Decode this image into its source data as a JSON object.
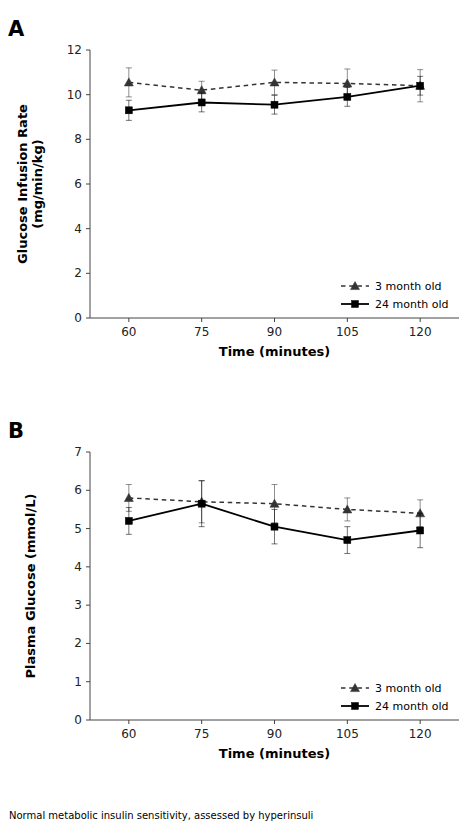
{
  "chart_data": [
    {
      "type": "line",
      "title": "A",
      "x_label": "Time (minutes)",
      "y_label": "Glucose Infusion Rate\n(mg/min/kg)",
      "x": [
        60,
        75,
        90,
        105,
        120
      ],
      "xlim": [
        52,
        128
      ],
      "ylim": [
        0,
        12
      ],
      "xticks": [
        60,
        75,
        90,
        105,
        120
      ],
      "yticks": [
        0,
        2,
        4,
        6,
        8,
        10,
        12
      ],
      "grid": false,
      "legend": "lower right",
      "series": [
        {
          "name": "3 month old",
          "color": "#333333",
          "marker": "triangle",
          "line_style": "dotted",
          "values": [
            10.55,
            10.2,
            10.55,
            10.5,
            10.4
          ],
          "errors": [
            0.65,
            0.4,
            0.55,
            0.65,
            0.72
          ]
        },
        {
          "name": "24 month old",
          "color": "#000000",
          "marker": "square",
          "line_style": "solid",
          "values": [
            9.3,
            9.65,
            9.55,
            9.9,
            10.4
          ],
          "errors": [
            0.45,
            0.42,
            0.42,
            0.42,
            0.42
          ]
        }
      ]
    },
    {
      "type": "line",
      "title": "B",
      "x_label": "Time (minutes)",
      "y_label": "Plasma Glucose (mmol/L)",
      "x": [
        60,
        75,
        90,
        105,
        120
      ],
      "xlim": [
        52,
        128
      ],
      "ylim": [
        0,
        7
      ],
      "xticks": [
        60,
        75,
        90,
        105,
        120
      ],
      "yticks": [
        0,
        1,
        2,
        3,
        4,
        5,
        6,
        7
      ],
      "grid": false,
      "legend": "lower right",
      "caption": "Normal metabolic insulin sensitivity, assessed by hyperinsuli",
      "series": [
        {
          "name": "3 month old",
          "color": "#333333",
          "marker": "triangle",
          "line_style": "dotted",
          "values": [
            5.8,
            5.7,
            5.65,
            5.5,
            5.4
          ],
          "errors": [
            0.35,
            0.55,
            0.5,
            0.3,
            0.35
          ]
        },
        {
          "name": "24 month old",
          "color": "#000000",
          "marker": "square",
          "line_style": "solid",
          "values": [
            5.2,
            5.65,
            5.05,
            4.7,
            4.95
          ],
          "errors": [
            0.35,
            0.6,
            0.45,
            0.35,
            0.45
          ]
        }
      ]
    }
  ]
}
